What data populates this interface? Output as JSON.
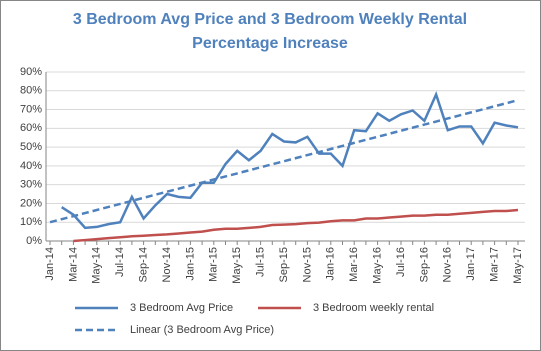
{
  "chart_data": {
    "type": "line",
    "title": "3 Bedroom Avg Price and 3 Bedroom Weekly Rental Percentage Increase",
    "categories": [
      "Jan-14",
      null,
      "Mar-14",
      null,
      "May-14",
      null,
      "Jul-14",
      null,
      "Sep-14",
      null,
      "Nov-14",
      null,
      "Jan-15",
      null,
      "Mar-15",
      null,
      "May-15",
      null,
      "Jul-15",
      null,
      "Sep-15",
      null,
      "Nov-15",
      null,
      "Jan-16",
      null,
      "Mar-16",
      null,
      "May-16",
      null,
      "Jul-16",
      null,
      "Sep-16",
      null,
      "Nov-16",
      null,
      "Jan-17",
      null,
      "Mar-17",
      null,
      "May-17"
    ],
    "series": [
      {
        "name": "3 Bedroom Avg Price",
        "color": "#4f81bd",
        "dash": false,
        "values": [
          null,
          18,
          14,
          7,
          7.5,
          9,
          10,
          23.5,
          12,
          19,
          25,
          23.5,
          23,
          31,
          31,
          41,
          48,
          43,
          48,
          57,
          53,
          52.5,
          55.5,
          46.5,
          46.5,
          40,
          59,
          58.5,
          68,
          64,
          67.5,
          69.5,
          64,
          78,
          59,
          61,
          61,
          52,
          63,
          61.5,
          60.5
        ]
      },
      {
        "name": "3 Bedroom weekly rental",
        "color": "#c0504d",
        "dash": false,
        "values": [
          null,
          null,
          0,
          0.5,
          1,
          1.5,
          2,
          2.5,
          2.8,
          3.2,
          3.5,
          4,
          4.5,
          5,
          6,
          6.5,
          6.5,
          7,
          7.5,
          8.5,
          8.7,
          9,
          9.5,
          9.8,
          10.5,
          11,
          11,
          12,
          12,
          12.5,
          13,
          13.5,
          13.5,
          14,
          14,
          14.5,
          15,
          15.5,
          16,
          16,
          16.5
        ]
      },
      {
        "name": "Linear (3 Bedroom Avg Price)",
        "color": "#4f81bd",
        "dash": true,
        "values": [
          10,
          11.625,
          13.25,
          14.875,
          16.5,
          18.125,
          19.75,
          21.375,
          23,
          24.625,
          26.25,
          27.875,
          29.5,
          31.125,
          32.75,
          34.375,
          36,
          37.625,
          39.25,
          40.875,
          42.5,
          44.125,
          45.75,
          47.375,
          49,
          50.625,
          52.25,
          53.875,
          55.5,
          57.125,
          58.75,
          60.375,
          62,
          63.625,
          65.25,
          66.875,
          68.5,
          70.125,
          71.75,
          73.375,
          75
        ]
      }
    ],
    "ylim": [
      0,
      90
    ],
    "yticks": [
      {
        "value": 0,
        "label": "0%"
      },
      {
        "value": 10,
        "label": "10%"
      },
      {
        "value": 20,
        "label": "20%"
      },
      {
        "value": 30,
        "label": "30%"
      },
      {
        "value": 40,
        "label": "40%"
      },
      {
        "value": 50,
        "label": "50%"
      },
      {
        "value": 60,
        "label": "60%"
      },
      {
        "value": 70,
        "label": "70%"
      },
      {
        "value": 80,
        "label": "80%"
      },
      {
        "value": 90,
        "label": "90%"
      }
    ],
    "grid": true
  }
}
